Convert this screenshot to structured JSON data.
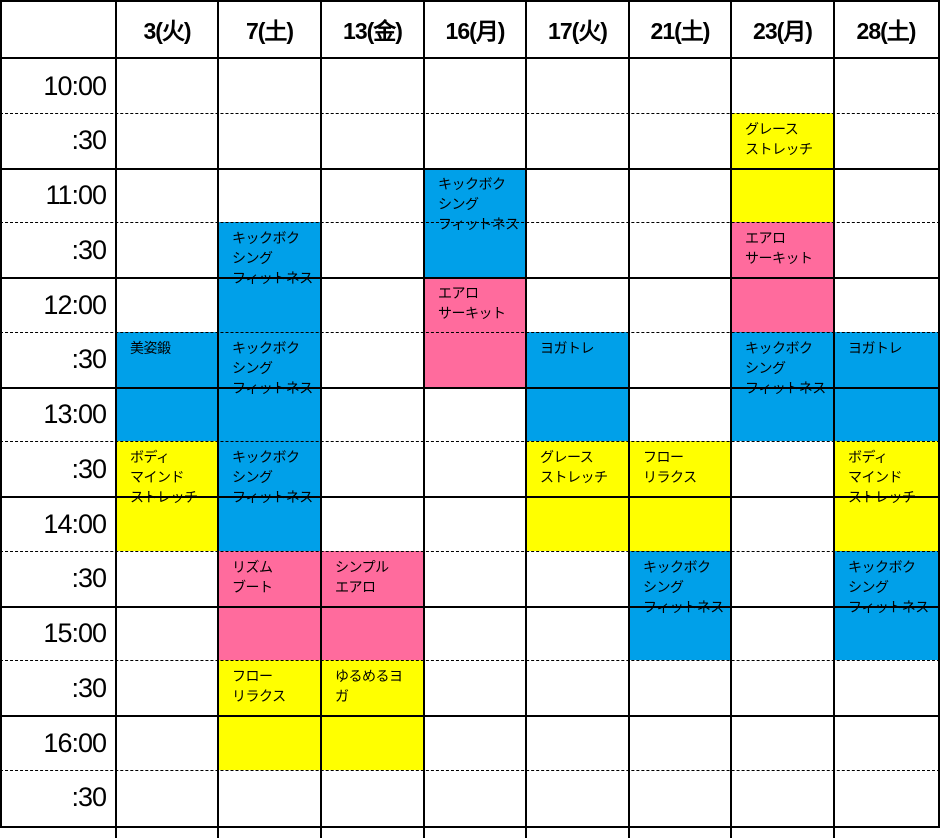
{
  "days": [
    "3(火)",
    "7(土)",
    "13(金)",
    "16(月)",
    "17(火)",
    "21(土)",
    "23(月)",
    "28(土)"
  ],
  "times": [
    "10:00",
    ":30",
    "11:00",
    ":30",
    "12:00",
    ":30",
    "13:00",
    ":30",
    "14:00",
    ":30",
    "15:00",
    ":30",
    "16:00",
    ":30"
  ],
  "colors": {
    "blue": "#00a0e9",
    "pink": "#ff6b9d",
    "yellow": "#ffff00"
  },
  "events": [
    {
      "day": 0,
      "start": 5,
      "end": 7,
      "color": "blue",
      "label": "美姿鍛"
    },
    {
      "day": 0,
      "start": 7,
      "end": 9,
      "color": "yellow",
      "label": "ボディ\nマインド\nストレッチ"
    },
    {
      "day": 1,
      "start": 3,
      "end": 5,
      "color": "blue",
      "label": "キックボク\nシング\nフィットネス"
    },
    {
      "day": 1,
      "start": 5,
      "end": 7,
      "color": "blue",
      "label": "キックボク\nシング\nフィットネス"
    },
    {
      "day": 1,
      "start": 7,
      "end": 9,
      "color": "blue",
      "label": "キックボク\nシング\nフィットネス"
    },
    {
      "day": 1,
      "start": 9,
      "end": 11,
      "color": "pink",
      "label": "リズム\nブート"
    },
    {
      "day": 1,
      "start": 11,
      "end": 13,
      "color": "yellow",
      "label": "フロー\nリラクス"
    },
    {
      "day": 2,
      "start": 9,
      "end": 11,
      "color": "pink",
      "label": "シンプル\nエアロ"
    },
    {
      "day": 2,
      "start": 11,
      "end": 13,
      "color": "yellow",
      "label": "ゆるめるヨ\nガ"
    },
    {
      "day": 3,
      "start": 2,
      "end": 4,
      "color": "blue",
      "label": "キックボク\nシング\nフィットネス"
    },
    {
      "day": 3,
      "start": 4,
      "end": 6,
      "color": "pink",
      "label": "エアロ\nサーキット"
    },
    {
      "day": 4,
      "start": 5,
      "end": 7,
      "color": "blue",
      "label": "ヨガトレ"
    },
    {
      "day": 4,
      "start": 7,
      "end": 9,
      "color": "yellow",
      "label": "グレース\nストレッチ"
    },
    {
      "day": 5,
      "start": 7,
      "end": 9,
      "color": "yellow",
      "label": "フロー\nリラクス"
    },
    {
      "day": 5,
      "start": 9,
      "end": 11,
      "color": "blue",
      "label": "キックボク\nシング\nフィットネス"
    },
    {
      "day": 6,
      "start": 1,
      "end": 3,
      "color": "yellow",
      "label": "グレース\nストレッチ"
    },
    {
      "day": 6,
      "start": 3,
      "end": 5,
      "color": "pink",
      "label": "エアロ\nサーキット"
    },
    {
      "day": 6,
      "start": 5,
      "end": 7,
      "color": "blue",
      "label": "キックボク\nシング\nフィットネス"
    },
    {
      "day": 7,
      "start": 5,
      "end": 7,
      "color": "blue",
      "label": "ヨガトレ"
    },
    {
      "day": 7,
      "start": 7,
      "end": 9,
      "color": "yellow",
      "label": "ボディ\nマインド\nストレッチ"
    },
    {
      "day": 7,
      "start": 9,
      "end": 11,
      "color": "blue",
      "label": "キックボク\nシング\nフィットネス"
    }
  ]
}
